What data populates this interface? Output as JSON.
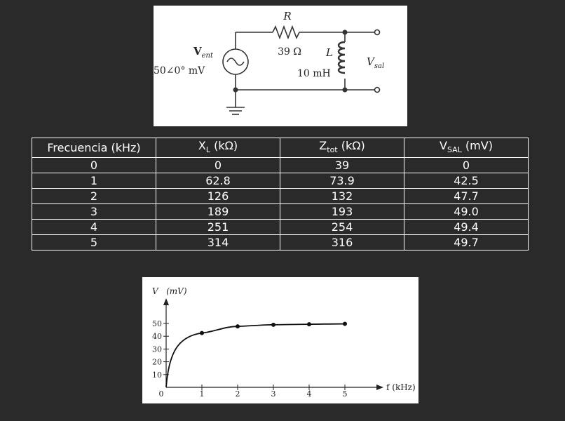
{
  "circuit": {
    "resistor_label": "R",
    "resistor_value": "39 Ω",
    "source_label_main": "V",
    "source_label_sub": "ent",
    "source_value": "50∠0° mV",
    "inductor_label": "L",
    "inductor_value": "10 mH",
    "output_label_main": "V",
    "output_label_sub": "sal"
  },
  "table": {
    "headers": [
      {
        "main": "Frecuencia (kHz)",
        "sub": "",
        "unit": ""
      },
      {
        "main": "X",
        "sub": "L",
        "unit": " (kΩ)"
      },
      {
        "main": "Z",
        "sub": "tot",
        "unit": " (kΩ)"
      },
      {
        "main": "V",
        "sub": "SAL",
        "unit": " (mV)"
      }
    ],
    "rows": [
      [
        "0",
        "0",
        "39",
        "0"
      ],
      [
        "1",
        "62.8",
        "73.9",
        "42.5"
      ],
      [
        "2",
        "126",
        "132",
        "47.7"
      ],
      [
        "3",
        "189",
        "193",
        "49.0"
      ],
      [
        "4",
        "251",
        "254",
        "49.4"
      ],
      [
        "5",
        "314",
        "316",
        "49.7"
      ]
    ]
  },
  "graph": {
    "ylabel": "V   (mV)",
    "xlabel": "f (kHz)",
    "x_ticks": [
      "0",
      "1",
      "2",
      "3",
      "4",
      "5"
    ],
    "y_ticks": [
      "10",
      "20",
      "30",
      "40",
      "50"
    ]
  },
  "chart_data": {
    "type": "line",
    "x": [
      0,
      1,
      2,
      3,
      4,
      5
    ],
    "y": [
      0,
      42.5,
      47.7,
      49.0,
      49.4,
      49.7
    ],
    "xlabel": "f (kHz)",
    "ylabel": "V (mV)",
    "xlim": [
      0,
      5
    ],
    "ylim": [
      0,
      50
    ],
    "grid": false,
    "marker_points": [
      1,
      2,
      3,
      4,
      5
    ]
  }
}
